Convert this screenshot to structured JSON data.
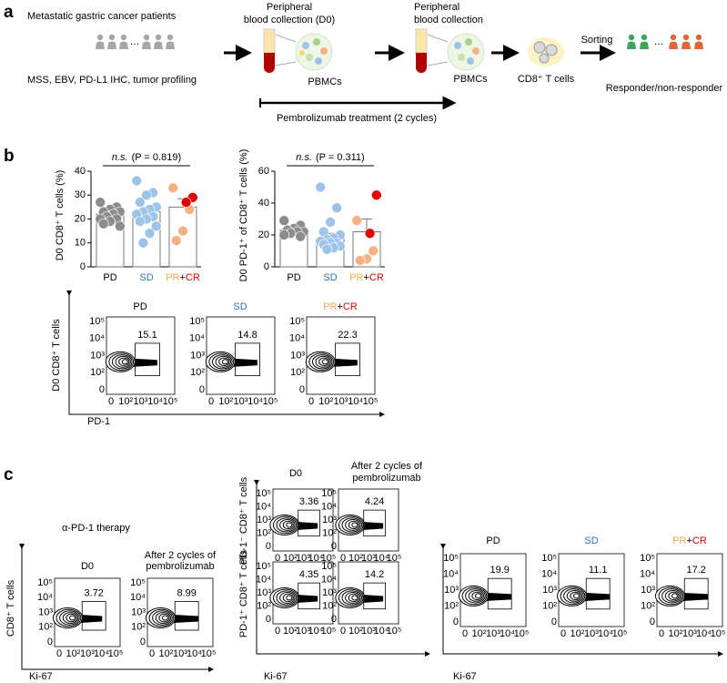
{
  "panel_labels": [
    "a",
    "b",
    "c"
  ],
  "workflow": {
    "patients": "Metastatic gastric cancer patients",
    "ellipsis": "…",
    "profiling": "MSS, EBV, PD-L1 IHC, tumor profiling",
    "collection_d0": [
      "Peripheral",
      "blood collection (D0)"
    ],
    "pbmcs_1": "PBMCs",
    "collection_2": [
      "Peripheral",
      "blood collection"
    ],
    "pbmcs_2": "PBMCs",
    "cd8": "CD8⁺ T cells",
    "sorting": "Sorting",
    "responder": "Responder/non-responder",
    "treatment": "Pembrolizumab treatment (2 cycles)"
  },
  "chart_data": [
    {
      "type": "bar",
      "ylabel": "D0 CD8⁺ T cells (%)",
      "test": "n.s.",
      "pvalue": "(P = 0.819)",
      "ylim": [
        0,
        40
      ],
      "yticks": [
        0,
        10,
        20,
        30,
        40
      ],
      "groups": [
        {
          "label": [
            {
              "text": "PD",
              "color": "#000000"
            }
          ],
          "bar": 22,
          "error": 1,
          "series": [
            {
              "color": "#8c8c8c",
              "values": [
                27,
                25,
                24,
                23,
                23,
                22,
                21,
                20,
                20,
                19,
                18,
                17
              ]
            }
          ]
        },
        {
          "label": [
            {
              "text": "SD",
              "color": "#2e75b6"
            }
          ],
          "bar": 23,
          "error": 2,
          "series": [
            {
              "color": "#9dc3e6",
              "values": [
                36,
                31,
                30,
                27,
                25,
                24,
                23,
                22,
                21,
                20,
                19,
                17,
                14,
                10
              ]
            }
          ]
        },
        {
          "label": [
            {
              "text": "PR",
              "color": "#f4a94e"
            },
            {
              "text": "+",
              "color": "#000000"
            },
            {
              "text": "CR",
              "color": "#e00000"
            }
          ],
          "bar": 25,
          "error": 3.5,
          "series": [
            {
              "color": "#f4b183",
              "values": [
                33,
                24,
                15,
                11
              ]
            },
            {
              "color": "#e00000",
              "values": [
                29,
                27
              ]
            }
          ]
        }
      ]
    },
    {
      "type": "bar",
      "ylabel": "D0 PD-1⁺ of CD8⁺ T cells (%)",
      "test": "n.s.",
      "pvalue": "(P = 0.311)",
      "ylim": [
        0,
        60
      ],
      "yticks": [
        0,
        20,
        40,
        60
      ],
      "groups": [
        {
          "label": [
            {
              "text": "PD",
              "color": "#000000"
            }
          ],
          "bar": 23,
          "error": 1.5,
          "series": [
            {
              "color": "#8c8c8c",
              "values": [
                29,
                26,
                24,
                23,
                22,
                22,
                21,
                20,
                19
              ]
            }
          ]
        },
        {
          "label": [
            {
              "text": "SD",
              "color": "#2e75b6"
            }
          ],
          "bar": 18,
          "error": 3,
          "series": [
            {
              "color": "#9dc3e6",
              "values": [
                50,
                37,
                28,
                22,
                20,
                18,
                17,
                16,
                15,
                15,
                14,
                13,
                12,
                11
              ]
            }
          ]
        },
        {
          "label": [
            {
              "text": "PR",
              "color": "#f4a94e"
            },
            {
              "text": "+",
              "color": "#000000"
            },
            {
              "text": "CR",
              "color": "#e00000"
            }
          ],
          "bar": 22,
          "error": 8,
          "series": [
            {
              "color": "#f4b183",
              "values": [
                29,
                10,
                5,
                4
              ]
            },
            {
              "color": "#e00000",
              "values": [
                45,
                21
              ]
            }
          ]
        }
      ]
    }
  ],
  "flow": {
    "ticks": [
      "0",
      "10²",
      "10³",
      "10⁴",
      "10⁵"
    ],
    "b": {
      "ylabel": "D0 CD8⁺ T cells",
      "xlabel": "PD-1",
      "plots": [
        {
          "title": [
            {
              "text": "PD",
              "color": "#000000"
            }
          ],
          "gate": 15.1
        },
        {
          "title": [
            {
              "text": "SD",
              "color": "#2e75b6"
            }
          ],
          "gate": 14.8
        },
        {
          "title": [
            {
              "text": "PR",
              "color": "#f4a94e"
            },
            {
              "text": "+",
              "color": "#000000"
            },
            {
              "text": "CR",
              "color": "#e00000"
            }
          ],
          "gate": 22.3
        }
      ]
    },
    "c_therapy": {
      "label": "α-PD-1 therapy",
      "ylabel": "CD8⁺ T cells",
      "xlabel": "Ki-67",
      "titles": [
        [
          "D0"
        ],
        [
          "After 2 cycles of",
          "pembrolizumab"
        ]
      ],
      "gates": [
        3.72,
        8.99
      ]
    },
    "c_subsets": {
      "titles": [
        [
          "D0"
        ],
        [
          "After 2 cycles of",
          "pembrolizumab"
        ]
      ],
      "ylabels": [
        "PD-1⁻ CD8⁺ T cells",
        "PD-1⁺ CD8⁺ T cells"
      ],
      "xlabel": "Ki-67",
      "gates": [
        [
          3.36,
          4.24
        ],
        [
          4.35,
          14.2
        ]
      ]
    },
    "c_response": {
      "xlabel": "Ki-67",
      "plots": [
        {
          "title": [
            {
              "text": "PD",
              "color": "#000000"
            }
          ],
          "gate": 19.9
        },
        {
          "title": [
            {
              "text": "SD",
              "color": "#2e75b6"
            }
          ],
          "gate": 11.1
        },
        {
          "title": [
            {
              "text": "PR",
              "color": "#f4a94e"
            },
            {
              "text": "+",
              "color": "#000000"
            },
            {
              "text": "CR",
              "color": "#e00000"
            }
          ],
          "gate": 17.2
        }
      ]
    }
  }
}
